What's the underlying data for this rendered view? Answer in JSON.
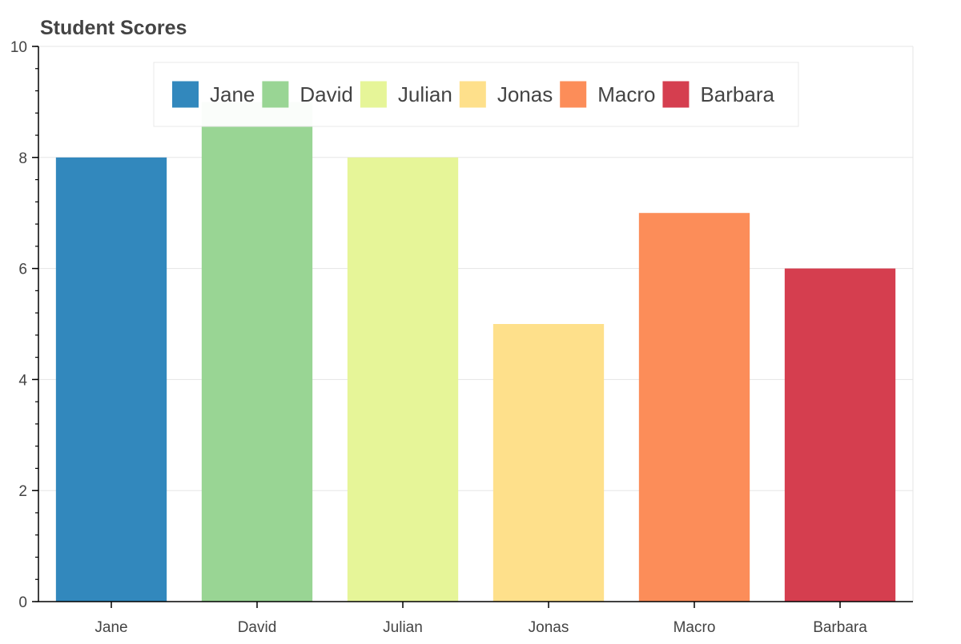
{
  "chart_data": {
    "type": "bar",
    "title": "Student Scores",
    "xlabel": "",
    "ylabel": "",
    "categories": [
      "Jane",
      "David",
      "Julian",
      "Jonas",
      "Macro",
      "Barbara"
    ],
    "values": [
      8,
      9,
      8,
      5,
      7,
      6
    ],
    "colors": [
      "#3288bd",
      "#99d594",
      "#e6f598",
      "#fee08b",
      "#fc8d59",
      "#d53e4f"
    ],
    "ylim": [
      0,
      10
    ],
    "yticks": [
      0,
      2,
      4,
      6,
      8,
      10
    ],
    "ytick_labels": [
      "0",
      "2",
      "4",
      "6",
      "8",
      "10"
    ],
    "grid": true,
    "legend": {
      "placement": "top-center",
      "entries": [
        "Jane",
        "David",
        "Julian",
        "Jonas",
        "Macro",
        "Barbara"
      ]
    }
  }
}
